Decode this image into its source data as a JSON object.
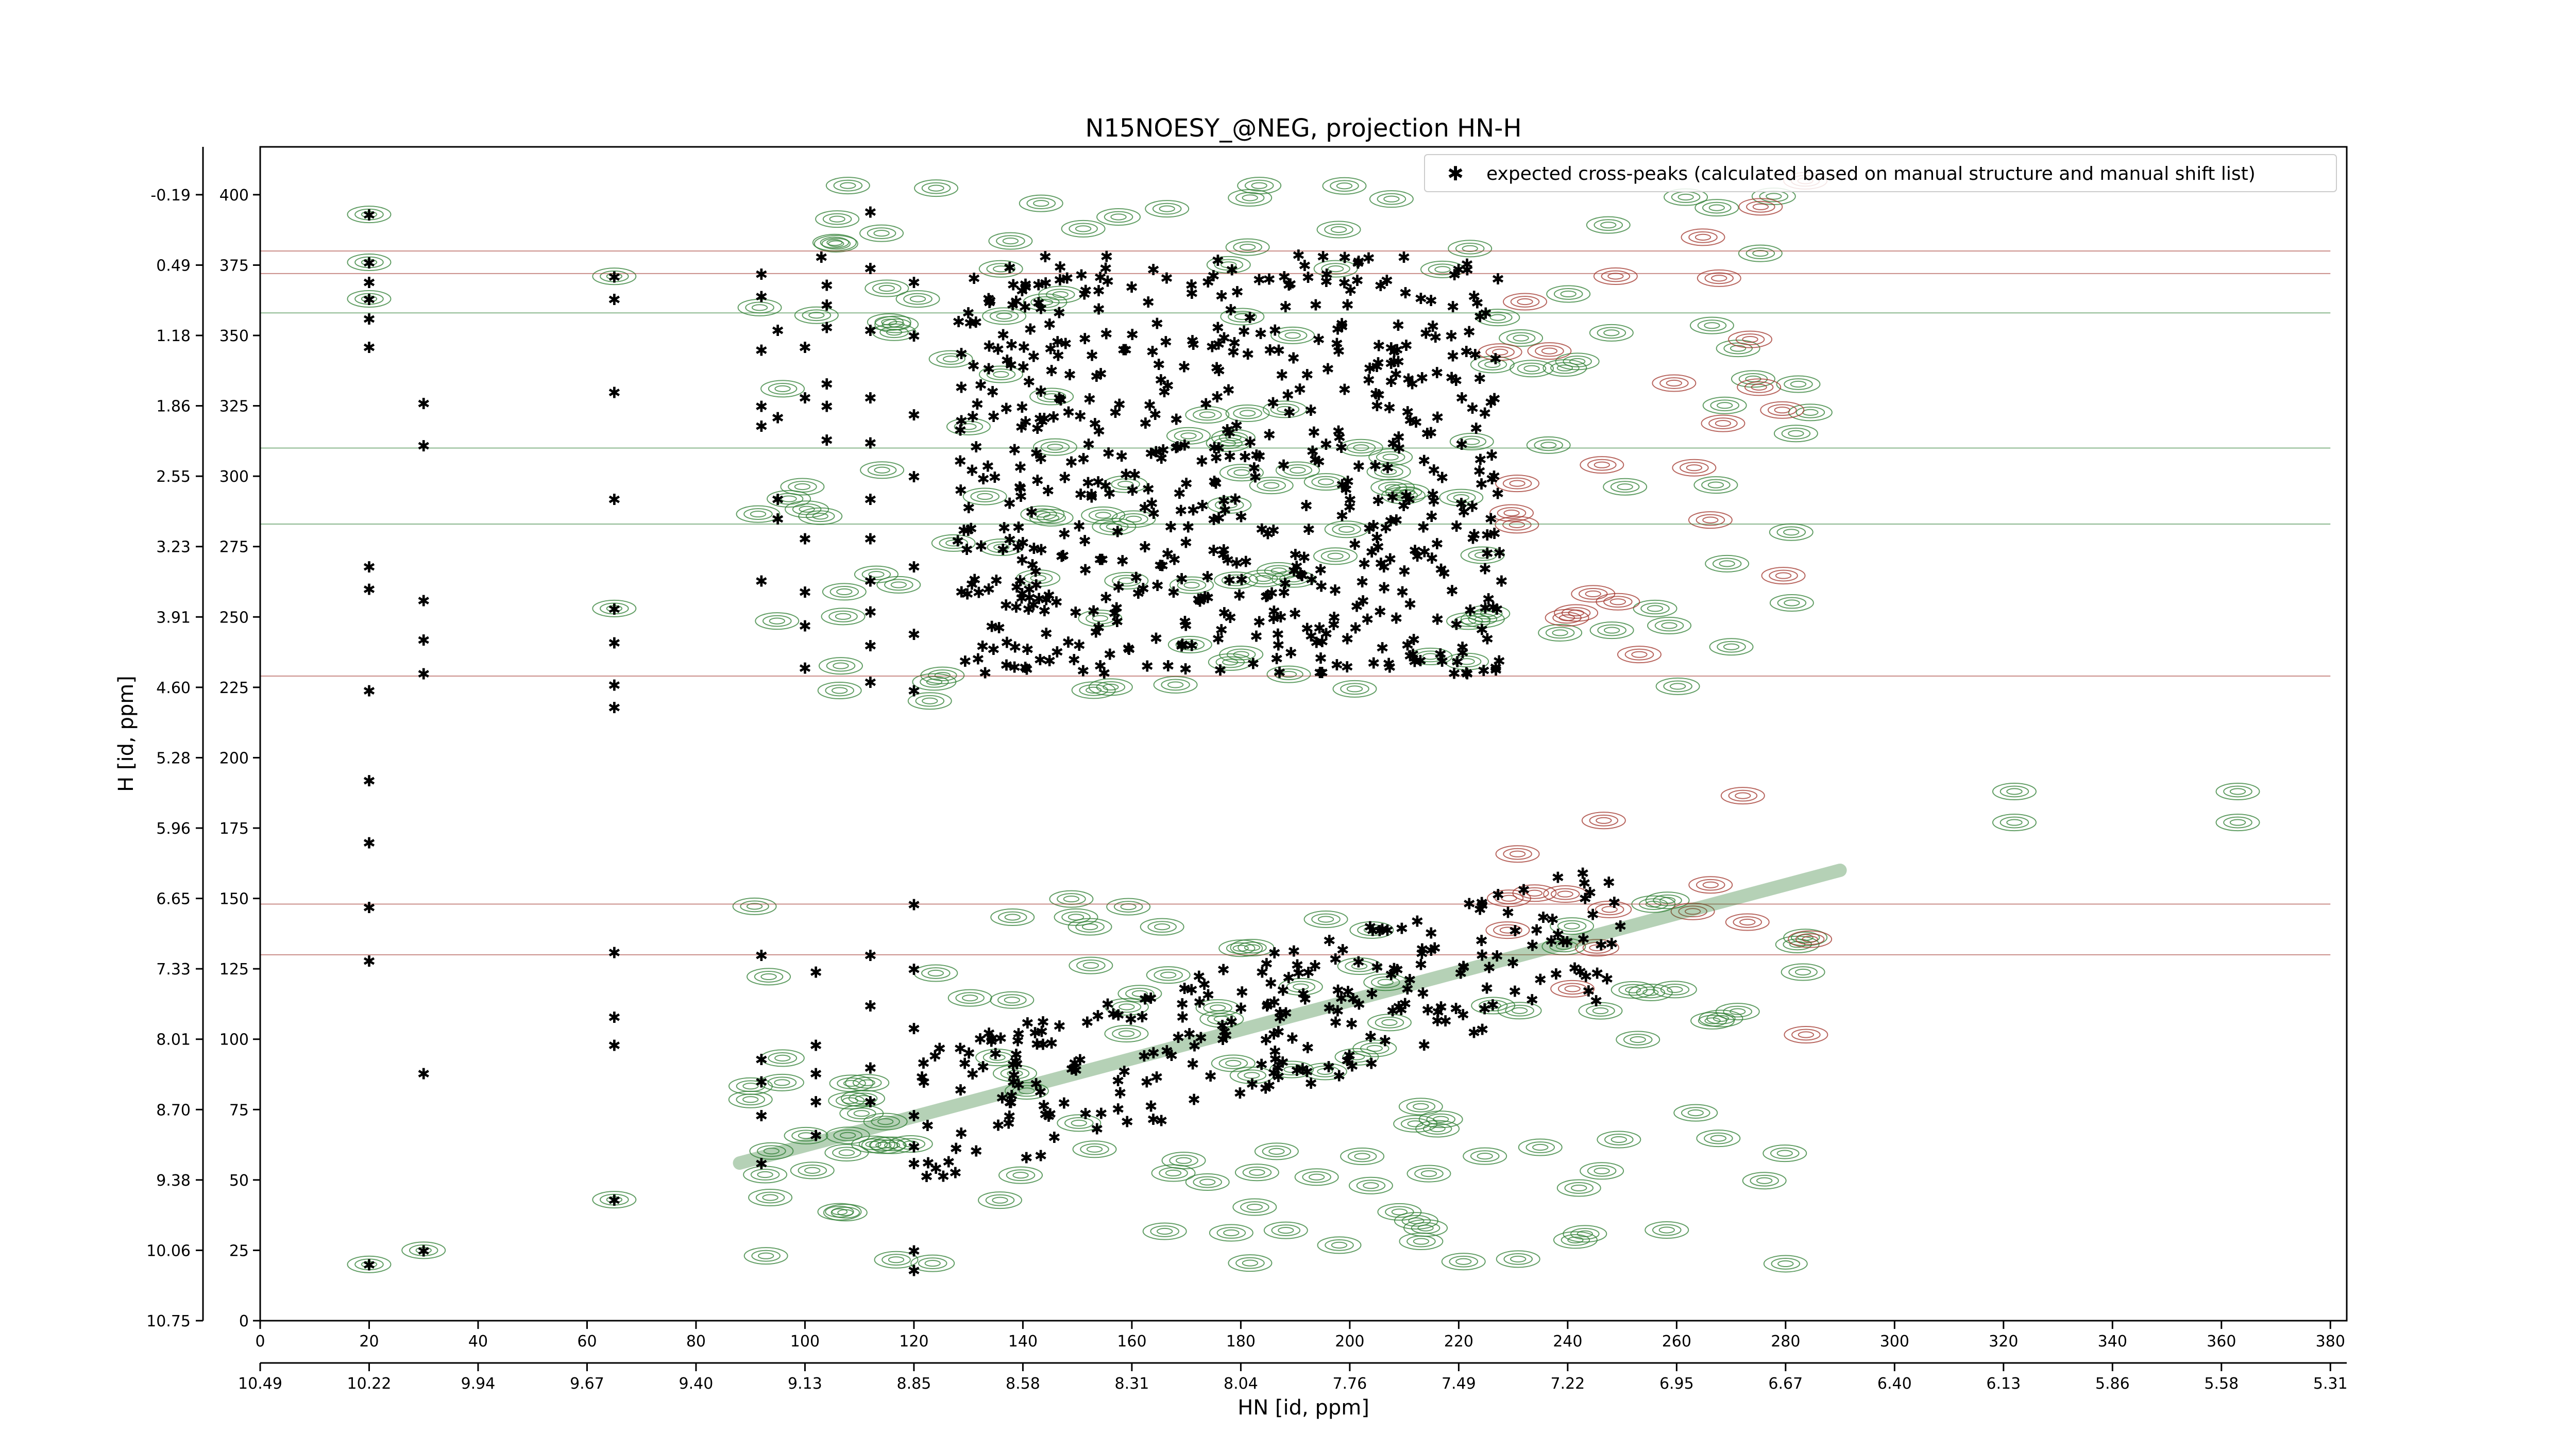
{
  "chart_data": {
    "type": "scatter",
    "title": "N15NOESY_@NEG, projection HN-H",
    "xlabel": "HN [id, ppm]",
    "ylabel": "H [id, ppm]",
    "xlim": [
      0,
      383
    ],
    "ylim": [
      0,
      417
    ],
    "x_ticks": [
      0,
      20,
      40,
      60,
      80,
      100,
      120,
      140,
      160,
      180,
      200,
      220,
      240,
      260,
      280,
      300,
      320,
      340,
      360,
      380
    ],
    "x_ppm_ticks": [
      "10.49",
      "10.22",
      "9.94",
      "9.67",
      "9.40",
      "9.13",
      "8.85",
      "8.58",
      "8.31",
      "8.04",
      "7.76",
      "7.49",
      "7.22",
      "6.95",
      "6.67",
      "6.40",
      "6.13",
      "5.86",
      "5.58",
      "5.31"
    ],
    "y_ticks": [
      0,
      25,
      50,
      75,
      100,
      125,
      150,
      175,
      200,
      225,
      250,
      275,
      300,
      325,
      350,
      375,
      400
    ],
    "y_ppm_ticks": [
      "10.75",
      "10.06",
      "9.38",
      "8.70",
      "8.01",
      "7.33",
      "6.65",
      "5.96",
      "5.28",
      "4.60",
      "3.91",
      "3.23",
      "2.55",
      "1.86",
      "1.18",
      "0.49",
      "-0.19"
    ],
    "legend": {
      "position": "top-right"
    },
    "colors": {
      "marker": "#0000ff",
      "positive_contour": "#2e7d32",
      "negative_contour": "#a0332a"
    },
    "series": [
      {
        "name": "expected cross-peaks (calculated based on manual structure and manual shift list)",
        "marker": "x",
        "points": [
          [
            20,
            393
          ],
          [
            20,
            376
          ],
          [
            20,
            369
          ],
          [
            20,
            363
          ],
          [
            20,
            356
          ],
          [
            20,
            346
          ],
          [
            20,
            268
          ],
          [
            20,
            260
          ],
          [
            20,
            224
          ],
          [
            20,
            192
          ],
          [
            20,
            170
          ],
          [
            20,
            147
          ],
          [
            20,
            128
          ],
          [
            30,
            326
          ],
          [
            30,
            311
          ],
          [
            30,
            256
          ],
          [
            30,
            242
          ],
          [
            30,
            230
          ],
          [
            30,
            88
          ],
          [
            30,
            25
          ],
          [
            20,
            20
          ],
          [
            65,
            371
          ],
          [
            65,
            363
          ],
          [
            65,
            330
          ],
          [
            65,
            292
          ],
          [
            65,
            253
          ],
          [
            65,
            241
          ],
          [
            65,
            226
          ],
          [
            65,
            218
          ],
          [
            65,
            131
          ],
          [
            65,
            108
          ],
          [
            65,
            98
          ],
          [
            65,
            43
          ],
          [
            92,
            372
          ],
          [
            92,
            364
          ],
          [
            92,
            345
          ],
          [
            92,
            325
          ],
          [
            92,
            318
          ],
          [
            92,
            263
          ],
          [
            92,
            130
          ],
          [
            92,
            93
          ],
          [
            92,
            85
          ],
          [
            92,
            73
          ],
          [
            92,
            56
          ],
          [
            95,
            352
          ],
          [
            95,
            321
          ],
          [
            95,
            292
          ],
          [
            95,
            285
          ],
          [
            100,
            346
          ],
          [
            100,
            328
          ],
          [
            100,
            278
          ],
          [
            100,
            259
          ],
          [
            100,
            247
          ],
          [
            100,
            232
          ],
          [
            102,
            124
          ],
          [
            102,
            98
          ],
          [
            102,
            88
          ],
          [
            102,
            78
          ],
          [
            102,
            66
          ],
          [
            103,
            378
          ],
          [
            104,
            368
          ],
          [
            104,
            361
          ],
          [
            104,
            353
          ],
          [
            104,
            333
          ],
          [
            104,
            325
          ],
          [
            104,
            313
          ],
          [
            112,
            394
          ],
          [
            112,
            374
          ],
          [
            112,
            352
          ],
          [
            112,
            328
          ],
          [
            112,
            312
          ],
          [
            112,
            292
          ],
          [
            112,
            278
          ],
          [
            112,
            263
          ],
          [
            112,
            252
          ],
          [
            112,
            240
          ],
          [
            112,
            227
          ],
          [
            112,
            130
          ],
          [
            112,
            112
          ],
          [
            112,
            90
          ],
          [
            112,
            78
          ],
          [
            120,
            369
          ],
          [
            120,
            350
          ],
          [
            120,
            322
          ],
          [
            120,
            300
          ],
          [
            120,
            268
          ],
          [
            120,
            244
          ],
          [
            120,
            224
          ],
          [
            120,
            148
          ],
          [
            120,
            125
          ],
          [
            120,
            104
          ],
          [
            120,
            73
          ],
          [
            120,
            62
          ],
          [
            120,
            56
          ],
          [
            120,
            25
          ],
          [
            120,
            18
          ]
        ]
      }
    ]
  },
  "legend_label": "expected cross-peaks (calculated based on manual structure and manual shift list)"
}
